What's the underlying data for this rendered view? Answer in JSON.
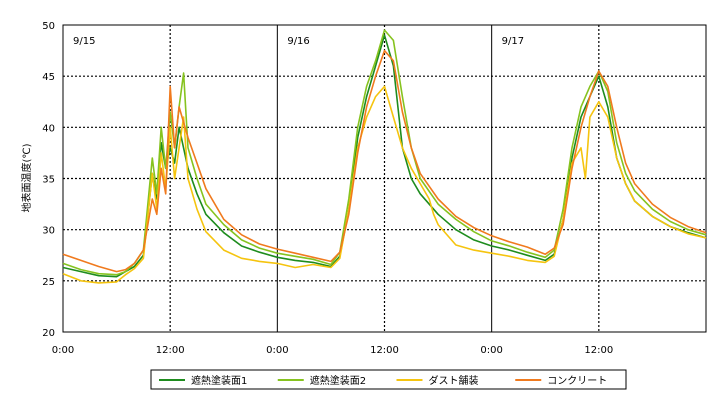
{
  "chart_data": {
    "type": "line",
    "ylabel": "地表面温度(℃)",
    "ylim": [
      20,
      50
    ],
    "yticks": [
      "20",
      "25",
      "30",
      "35",
      "40",
      "45",
      "50"
    ],
    "xlim": [
      0,
      72
    ],
    "xticks": [
      "0:00",
      "12:00",
      "0:00",
      "12:00",
      "0:00",
      "12:00"
    ],
    "grid": true,
    "legend_position": "bottom",
    "annotations": [
      "9/15",
      "9/16",
      "9/17"
    ],
    "series": [
      {
        "name": "遮熱塗装面1",
        "color": "#1e8c1e",
        "points": [
          [
            0,
            26.3
          ],
          [
            2,
            25.9
          ],
          [
            4,
            25.5
          ],
          [
            6,
            25.4
          ],
          [
            7,
            25.9
          ],
          [
            8,
            26.4
          ],
          [
            9,
            27.5
          ],
          [
            10,
            35.5
          ],
          [
            10.5,
            33
          ],
          [
            11,
            38.5
          ],
          [
            11.5,
            36
          ],
          [
            12,
            38
          ],
          [
            12.5,
            36.5
          ],
          [
            13,
            40
          ],
          [
            14,
            36
          ],
          [
            15,
            33.5
          ],
          [
            16,
            31.5
          ],
          [
            18,
            29.7
          ],
          [
            20,
            28.4
          ],
          [
            22,
            27.8
          ],
          [
            24,
            27.3
          ],
          [
            26,
            27.0
          ],
          [
            28,
            26.8
          ],
          [
            30,
            26.4
          ],
          [
            31,
            27.4
          ],
          [
            32,
            32
          ],
          [
            33,
            39
          ],
          [
            34,
            43
          ],
          [
            35,
            46
          ],
          [
            36,
            49
          ],
          [
            37,
            46
          ],
          [
            38,
            38
          ],
          [
            39,
            35
          ],
          [
            40,
            33.5
          ],
          [
            42,
            31.5
          ],
          [
            44,
            30
          ],
          [
            46,
            29
          ],
          [
            48,
            28.4
          ],
          [
            50,
            28.0
          ],
          [
            52,
            27.5
          ],
          [
            54,
            27.0
          ],
          [
            55,
            27.6
          ],
          [
            56,
            31
          ],
          [
            57,
            37
          ],
          [
            58,
            41
          ],
          [
            59,
            43
          ],
          [
            60,
            45
          ],
          [
            61,
            42
          ],
          [
            62,
            37
          ],
          [
            63,
            34.5
          ],
          [
            64,
            32.8
          ],
          [
            66,
            31.3
          ],
          [
            68,
            30.3
          ],
          [
            70,
            29.7
          ],
          [
            72,
            29.2
          ]
        ]
      },
      {
        "name": "遮熱塗装面2",
        "color": "#86c31f",
        "points": [
          [
            0,
            26.7
          ],
          [
            2,
            26.1
          ],
          [
            4,
            25.7
          ],
          [
            6,
            25.6
          ],
          [
            7,
            25.9
          ],
          [
            8,
            26.7
          ],
          [
            9,
            28
          ],
          [
            10,
            37
          ],
          [
            10.5,
            33.5
          ],
          [
            11,
            40
          ],
          [
            11.5,
            36
          ],
          [
            12,
            41.5
          ],
          [
            12.5,
            38
          ],
          [
            13,
            42
          ],
          [
            13.5,
            45.3
          ],
          [
            14,
            38
          ],
          [
            15,
            35
          ],
          [
            16,
            32.5
          ],
          [
            18,
            30.5
          ],
          [
            20,
            29
          ],
          [
            22,
            28.2
          ],
          [
            24,
            27.7
          ],
          [
            26,
            27.4
          ],
          [
            28,
            27.1
          ],
          [
            30,
            26.6
          ],
          [
            31,
            27.8
          ],
          [
            32,
            33
          ],
          [
            33,
            40
          ],
          [
            34,
            44
          ],
          [
            35,
            46.5
          ],
          [
            36,
            49.5
          ],
          [
            37,
            48.5
          ],
          [
            38,
            43
          ],
          [
            39,
            38
          ],
          [
            40,
            35
          ],
          [
            42,
            32.5
          ],
          [
            44,
            31
          ],
          [
            46,
            29.8
          ],
          [
            48,
            28.9
          ],
          [
            50,
            28.4
          ],
          [
            52,
            27.8
          ],
          [
            54,
            27.3
          ],
          [
            55,
            28
          ],
          [
            56,
            32
          ],
          [
            57,
            38
          ],
          [
            58,
            42
          ],
          [
            59,
            44
          ],
          [
            60,
            45.5
          ],
          [
            61,
            43.5
          ],
          [
            62,
            38.5
          ],
          [
            63,
            35.5
          ],
          [
            64,
            33.8
          ],
          [
            66,
            32
          ],
          [
            68,
            30.8
          ],
          [
            70,
            30
          ],
          [
            72,
            29.5
          ]
        ]
      },
      {
        "name": "ダスト舗装",
        "color": "#f5c40f",
        "points": [
          [
            0,
            25.7
          ],
          [
            2,
            25.0
          ],
          [
            4,
            24.8
          ],
          [
            6,
            24.9
          ],
          [
            7,
            25.6
          ],
          [
            8,
            26.2
          ],
          [
            9,
            27.2
          ],
          [
            10,
            35.5
          ],
          [
            10.5,
            32
          ],
          [
            11,
            37.5
          ],
          [
            11.5,
            34
          ],
          [
            12,
            40
          ],
          [
            12.5,
            35
          ],
          [
            13,
            38
          ],
          [
            13.5,
            41
          ],
          [
            14,
            35
          ],
          [
            15,
            32
          ],
          [
            16,
            29.8
          ],
          [
            18,
            28
          ],
          [
            20,
            27.2
          ],
          [
            22,
            26.9
          ],
          [
            24,
            26.7
          ],
          [
            26,
            26.3
          ],
          [
            28,
            26.6
          ],
          [
            30,
            26.3
          ],
          [
            31,
            27.2
          ],
          [
            32,
            32
          ],
          [
            33,
            38
          ],
          [
            34,
            41
          ],
          [
            35,
            43
          ],
          [
            36,
            44
          ],
          [
            37,
            41
          ],
          [
            38,
            38
          ],
          [
            39,
            36
          ],
          [
            40,
            34.5
          ],
          [
            41,
            33
          ],
          [
            41.5,
            31.5
          ],
          [
            42,
            30.5
          ],
          [
            44,
            28.5
          ],
          [
            46,
            28
          ],
          [
            48,
            27.7
          ],
          [
            50,
            27.4
          ],
          [
            52,
            27.0
          ],
          [
            54,
            26.8
          ],
          [
            55,
            27.4
          ],
          [
            56,
            31
          ],
          [
            57,
            36.5
          ],
          [
            58,
            38
          ],
          [
            58.5,
            35
          ],
          [
            59,
            41
          ],
          [
            60,
            42.5
          ],
          [
            61,
            41
          ],
          [
            62,
            37
          ],
          [
            63,
            34.5
          ],
          [
            64,
            32.8
          ],
          [
            66,
            31.3
          ],
          [
            68,
            30.3
          ],
          [
            70,
            29.6
          ],
          [
            72,
            29.2
          ]
        ]
      },
      {
        "name": "コンクリート",
        "color": "#f07a1e",
        "points": [
          [
            0,
            27.6
          ],
          [
            2,
            27.0
          ],
          [
            4,
            26.4
          ],
          [
            6,
            25.9
          ],
          [
            7,
            26.1
          ],
          [
            8,
            26.7
          ],
          [
            9,
            28
          ],
          [
            10,
            33
          ],
          [
            10.5,
            31.5
          ],
          [
            11,
            36
          ],
          [
            11.5,
            33.5
          ],
          [
            12,
            44
          ],
          [
            12.5,
            38
          ],
          [
            13,
            42
          ],
          [
            14,
            39
          ],
          [
            15,
            36.5
          ],
          [
            16,
            34
          ],
          [
            18,
            31
          ],
          [
            20,
            29.5
          ],
          [
            22,
            28.6
          ],
          [
            24,
            28.1
          ],
          [
            26,
            27.7
          ],
          [
            28,
            27.3
          ],
          [
            30,
            26.9
          ],
          [
            31,
            27.8
          ],
          [
            32,
            31.5
          ],
          [
            33,
            37.5
          ],
          [
            34,
            42
          ],
          [
            35,
            45
          ],
          [
            36,
            47.5
          ],
          [
            37,
            46.5
          ],
          [
            38,
            41.5
          ],
          [
            39,
            38
          ],
          [
            40,
            35.5
          ],
          [
            42,
            33
          ],
          [
            44,
            31.3
          ],
          [
            46,
            30.2
          ],
          [
            48,
            29.4
          ],
          [
            50,
            28.8
          ],
          [
            52,
            28.3
          ],
          [
            54,
            27.6
          ],
          [
            55,
            28.2
          ],
          [
            56,
            30.5
          ],
          [
            57,
            36
          ],
          [
            58,
            40
          ],
          [
            59,
            43
          ],
          [
            60,
            45.5
          ],
          [
            61,
            44
          ],
          [
            62,
            40
          ],
          [
            63,
            36.5
          ],
          [
            64,
            34.5
          ],
          [
            66,
            32.5
          ],
          [
            68,
            31.2
          ],
          [
            70,
            30.3
          ],
          [
            72,
            29.7
          ]
        ]
      }
    ]
  }
}
